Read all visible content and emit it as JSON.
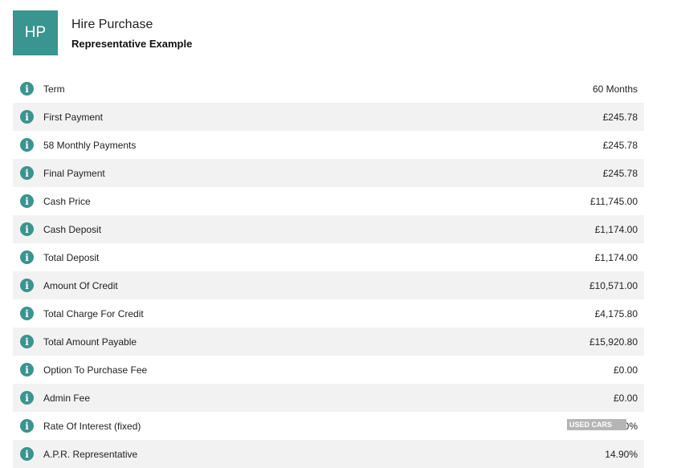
{
  "header": {
    "logo": "HP",
    "title": "Hire Purchase",
    "subtitle": "Representative Example"
  },
  "rows": [
    {
      "label": "Term",
      "value": "60 Months"
    },
    {
      "label": "First Payment",
      "value": "£245.78"
    },
    {
      "label": "58 Monthly Payments",
      "value": "£245.78"
    },
    {
      "label": "Final Payment",
      "value": "£245.78"
    },
    {
      "label": "Cash Price",
      "value": "£11,745.00"
    },
    {
      "label": "Cash Deposit",
      "value": "£1,174.00"
    },
    {
      "label": "Total Deposit",
      "value": "£1,174.00"
    },
    {
      "label": "Amount Of Credit",
      "value": "£10,571.00"
    },
    {
      "label": "Total Charge For Credit",
      "value": "£4,175.80"
    },
    {
      "label": "Total Amount Payable",
      "value": "£15,920.80"
    },
    {
      "label": "Option To Purchase Fee",
      "value": "£0.00"
    },
    {
      "label": "Admin Fee",
      "value": "£0.00"
    },
    {
      "label": "Rate Of Interest (fixed)",
      "value": "7.90%"
    },
    {
      "label": "A.P.R. Representative",
      "value": "14.90%"
    }
  ],
  "watermark": "USED CARS",
  "colors": {
    "accent": "#3a9490"
  }
}
